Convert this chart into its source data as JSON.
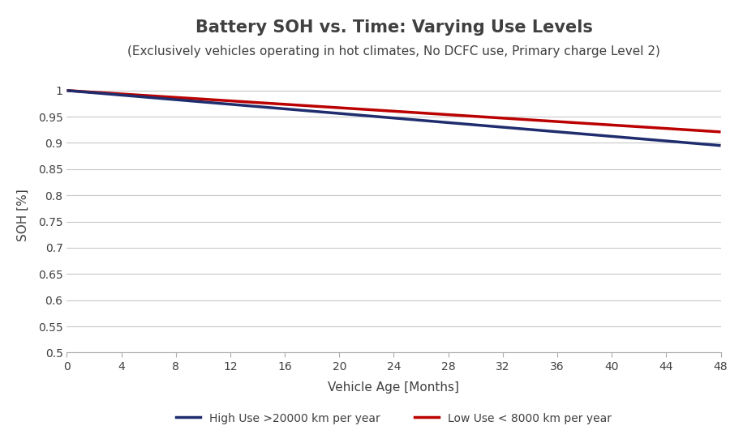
{
  "title": "Battery SOH vs. Time: Varying Use Levels",
  "subtitle": "(Exclusively vehicles operating in hot climates, No DCFC use, Primary charge Level 2)",
  "xlabel": "Vehicle Age [Months]",
  "ylabel": "SOH [%]",
  "xlim": [
    0,
    48
  ],
  "ylim": [
    0.5,
    1.025
  ],
  "xticks": [
    0,
    4,
    8,
    12,
    16,
    20,
    24,
    28,
    32,
    36,
    40,
    44,
    48
  ],
  "yticks": [
    0.5,
    0.55,
    0.6,
    0.65,
    0.7,
    0.75,
    0.8,
    0.85,
    0.9,
    0.95,
    1.0
  ],
  "high_use": {
    "x": [
      0,
      48
    ],
    "y": [
      1.0,
      0.895
    ],
    "color": "#1F2D6E",
    "linewidth": 2.5,
    "label": "High Use >20000 km per year"
  },
  "low_use": {
    "x": [
      0,
      48
    ],
    "y": [
      1.0,
      0.921
    ],
    "color": "#BB0000",
    "linewidth": 2.5,
    "label": "Low Use < 8000 km per year"
  },
  "background_color": "#ffffff",
  "grid_color": "#c8c8c8",
  "title_fontsize": 15,
  "title_color": "#404040",
  "subtitle_fontsize": 11,
  "subtitle_color": "#404040",
  "axis_label_fontsize": 11,
  "tick_fontsize": 10,
  "tick_color": "#404040",
  "legend_fontsize": 10
}
